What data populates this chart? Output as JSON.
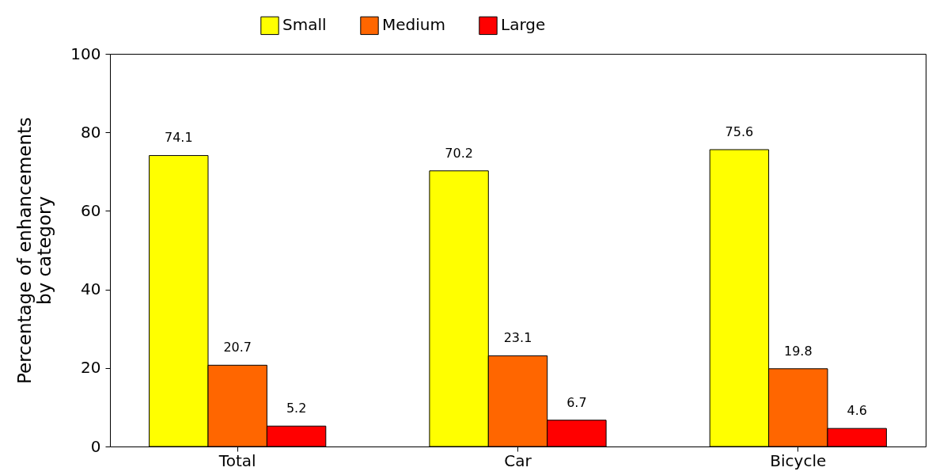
{
  "chart_data": {
    "type": "bar",
    "ylabel": "Percentage of enhancements\nby category",
    "categories": [
      "Total",
      "Car",
      "Bicycle"
    ],
    "series": [
      {
        "name": "Small",
        "color": "#ffff00",
        "values": [
          74.1,
          70.2,
          75.6
        ]
      },
      {
        "name": "Medium",
        "color": "#ff6600",
        "values": [
          20.7,
          23.1,
          19.8
        ]
      },
      {
        "name": "Large",
        "color": "#ff0000",
        "values": [
          5.2,
          6.7,
          4.6
        ]
      }
    ],
    "ylim": [
      0,
      100
    ],
    "yticks": [
      0,
      20,
      40,
      60,
      80,
      100
    ],
    "legend": "top",
    "data_labels": true
  }
}
